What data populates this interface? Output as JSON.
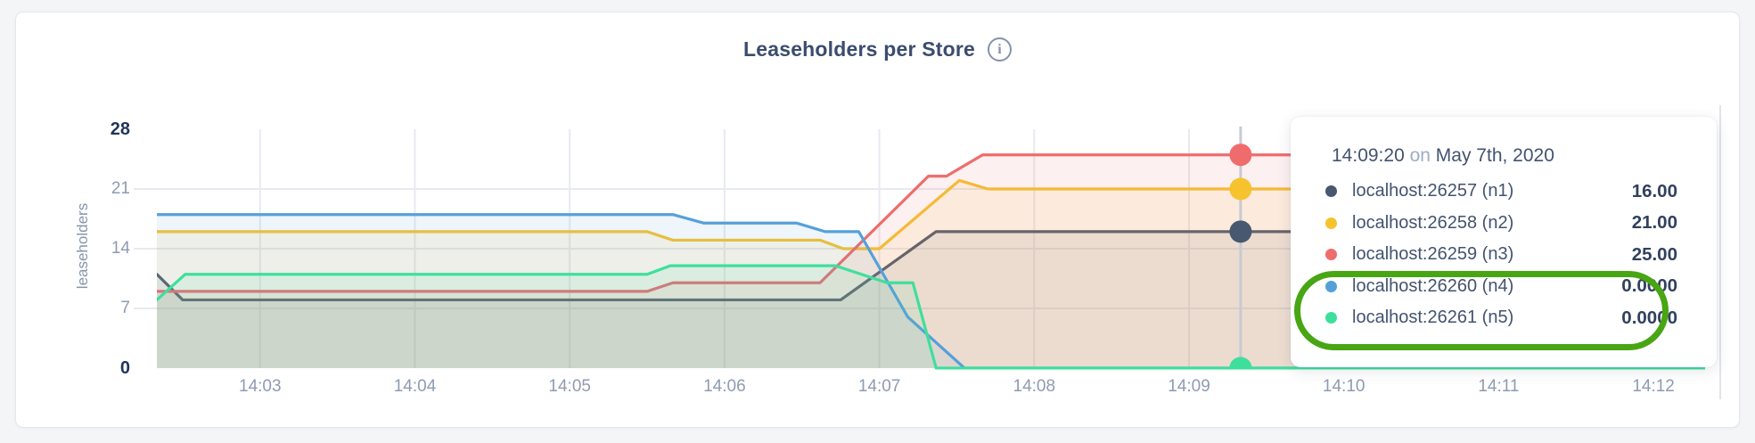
{
  "header": {
    "title": "Leaseholders per Store",
    "info_glyph": "i"
  },
  "chart_data": {
    "type": "area",
    "title": "Leaseholders per Store",
    "xlabel": "",
    "ylabel": "leaseholders",
    "ylim": [
      0,
      28
    ],
    "y_ticks": [
      0,
      7,
      14,
      21,
      28
    ],
    "grid": true,
    "fill_opacity": 0.1,
    "x_domain_seconds": 600,
    "x_ticks": [
      {
        "label": "14:03",
        "t": 40
      },
      {
        "label": "14:04",
        "t": 100
      },
      {
        "label": "14:05",
        "t": 160
      },
      {
        "label": "14:06",
        "t": 220
      },
      {
        "label": "14:07",
        "t": 280
      },
      {
        "label": "14:08",
        "t": 340
      },
      {
        "label": "14:09",
        "t": 400
      },
      {
        "label": "14:10",
        "t": 460
      },
      {
        "label": "14:11",
        "t": 520
      },
      {
        "label": "14:12",
        "t": 580
      }
    ],
    "series": [
      {
        "name": "localhost:26257 (n1)",
        "color": "#475870",
        "points": [
          [
            0,
            11
          ],
          [
            10,
            8
          ],
          [
            265,
            8
          ],
          [
            302,
            16
          ],
          [
            600,
            16
          ]
        ]
      },
      {
        "name": "localhost:26258 (n2)",
        "color": "#f6c32f",
        "points": [
          [
            0,
            16
          ],
          [
            190,
            16
          ],
          [
            200,
            15
          ],
          [
            257,
            15
          ],
          [
            266,
            14
          ],
          [
            280,
            14
          ],
          [
            311,
            22
          ],
          [
            322,
            21
          ],
          [
            600,
            21
          ]
        ]
      },
      {
        "name": "localhost:26259 (n3)",
        "color": "#ef6c6c",
        "points": [
          [
            0,
            9
          ],
          [
            190,
            9
          ],
          [
            200,
            10
          ],
          [
            257,
            10
          ],
          [
            299,
            22.5
          ],
          [
            306,
            22.5
          ],
          [
            320,
            25
          ],
          [
            600,
            25
          ]
        ]
      },
      {
        "name": "localhost:26260 (n4)",
        "color": "#56a0d9",
        "points": [
          [
            0,
            18
          ],
          [
            200,
            18
          ],
          [
            212,
            17
          ],
          [
            248,
            17
          ],
          [
            259,
            16
          ],
          [
            272,
            16
          ],
          [
            291,
            6
          ],
          [
            313,
            0
          ],
          [
            600,
            0
          ]
        ]
      },
      {
        "name": "localhost:26261 (n5)",
        "color": "#3edf9d",
        "points": [
          [
            0,
            8
          ],
          [
            11,
            11
          ],
          [
            190,
            11
          ],
          [
            199,
            12
          ],
          [
            263,
            12
          ],
          [
            283,
            10
          ],
          [
            293,
            10
          ],
          [
            302,
            0
          ],
          [
            600,
            0
          ]
        ]
      }
    ],
    "hover": {
      "t": 420,
      "values": [
        16,
        21,
        25,
        0,
        0
      ]
    },
    "legend_position": "tooltip"
  },
  "tooltip": {
    "time": "14:09:20",
    "conjunction": "on",
    "date": "May 7th, 2020",
    "rows": [
      {
        "name": "localhost:26257 (n1)",
        "value": "16.00",
        "color": "#475870"
      },
      {
        "name": "localhost:26258 (n2)",
        "value": "21.00",
        "color": "#f6c32f"
      },
      {
        "name": "localhost:26259 (n3)",
        "value": "25.00",
        "color": "#ef6c6c"
      },
      {
        "name": "localhost:26260 (n4)",
        "value": "0.0000",
        "color": "#56a0d9"
      },
      {
        "name": "localhost:26261 (n5)",
        "value": "0.0000",
        "color": "#3edf9d"
      }
    ]
  },
  "annotation": {
    "color": "#48a513"
  }
}
